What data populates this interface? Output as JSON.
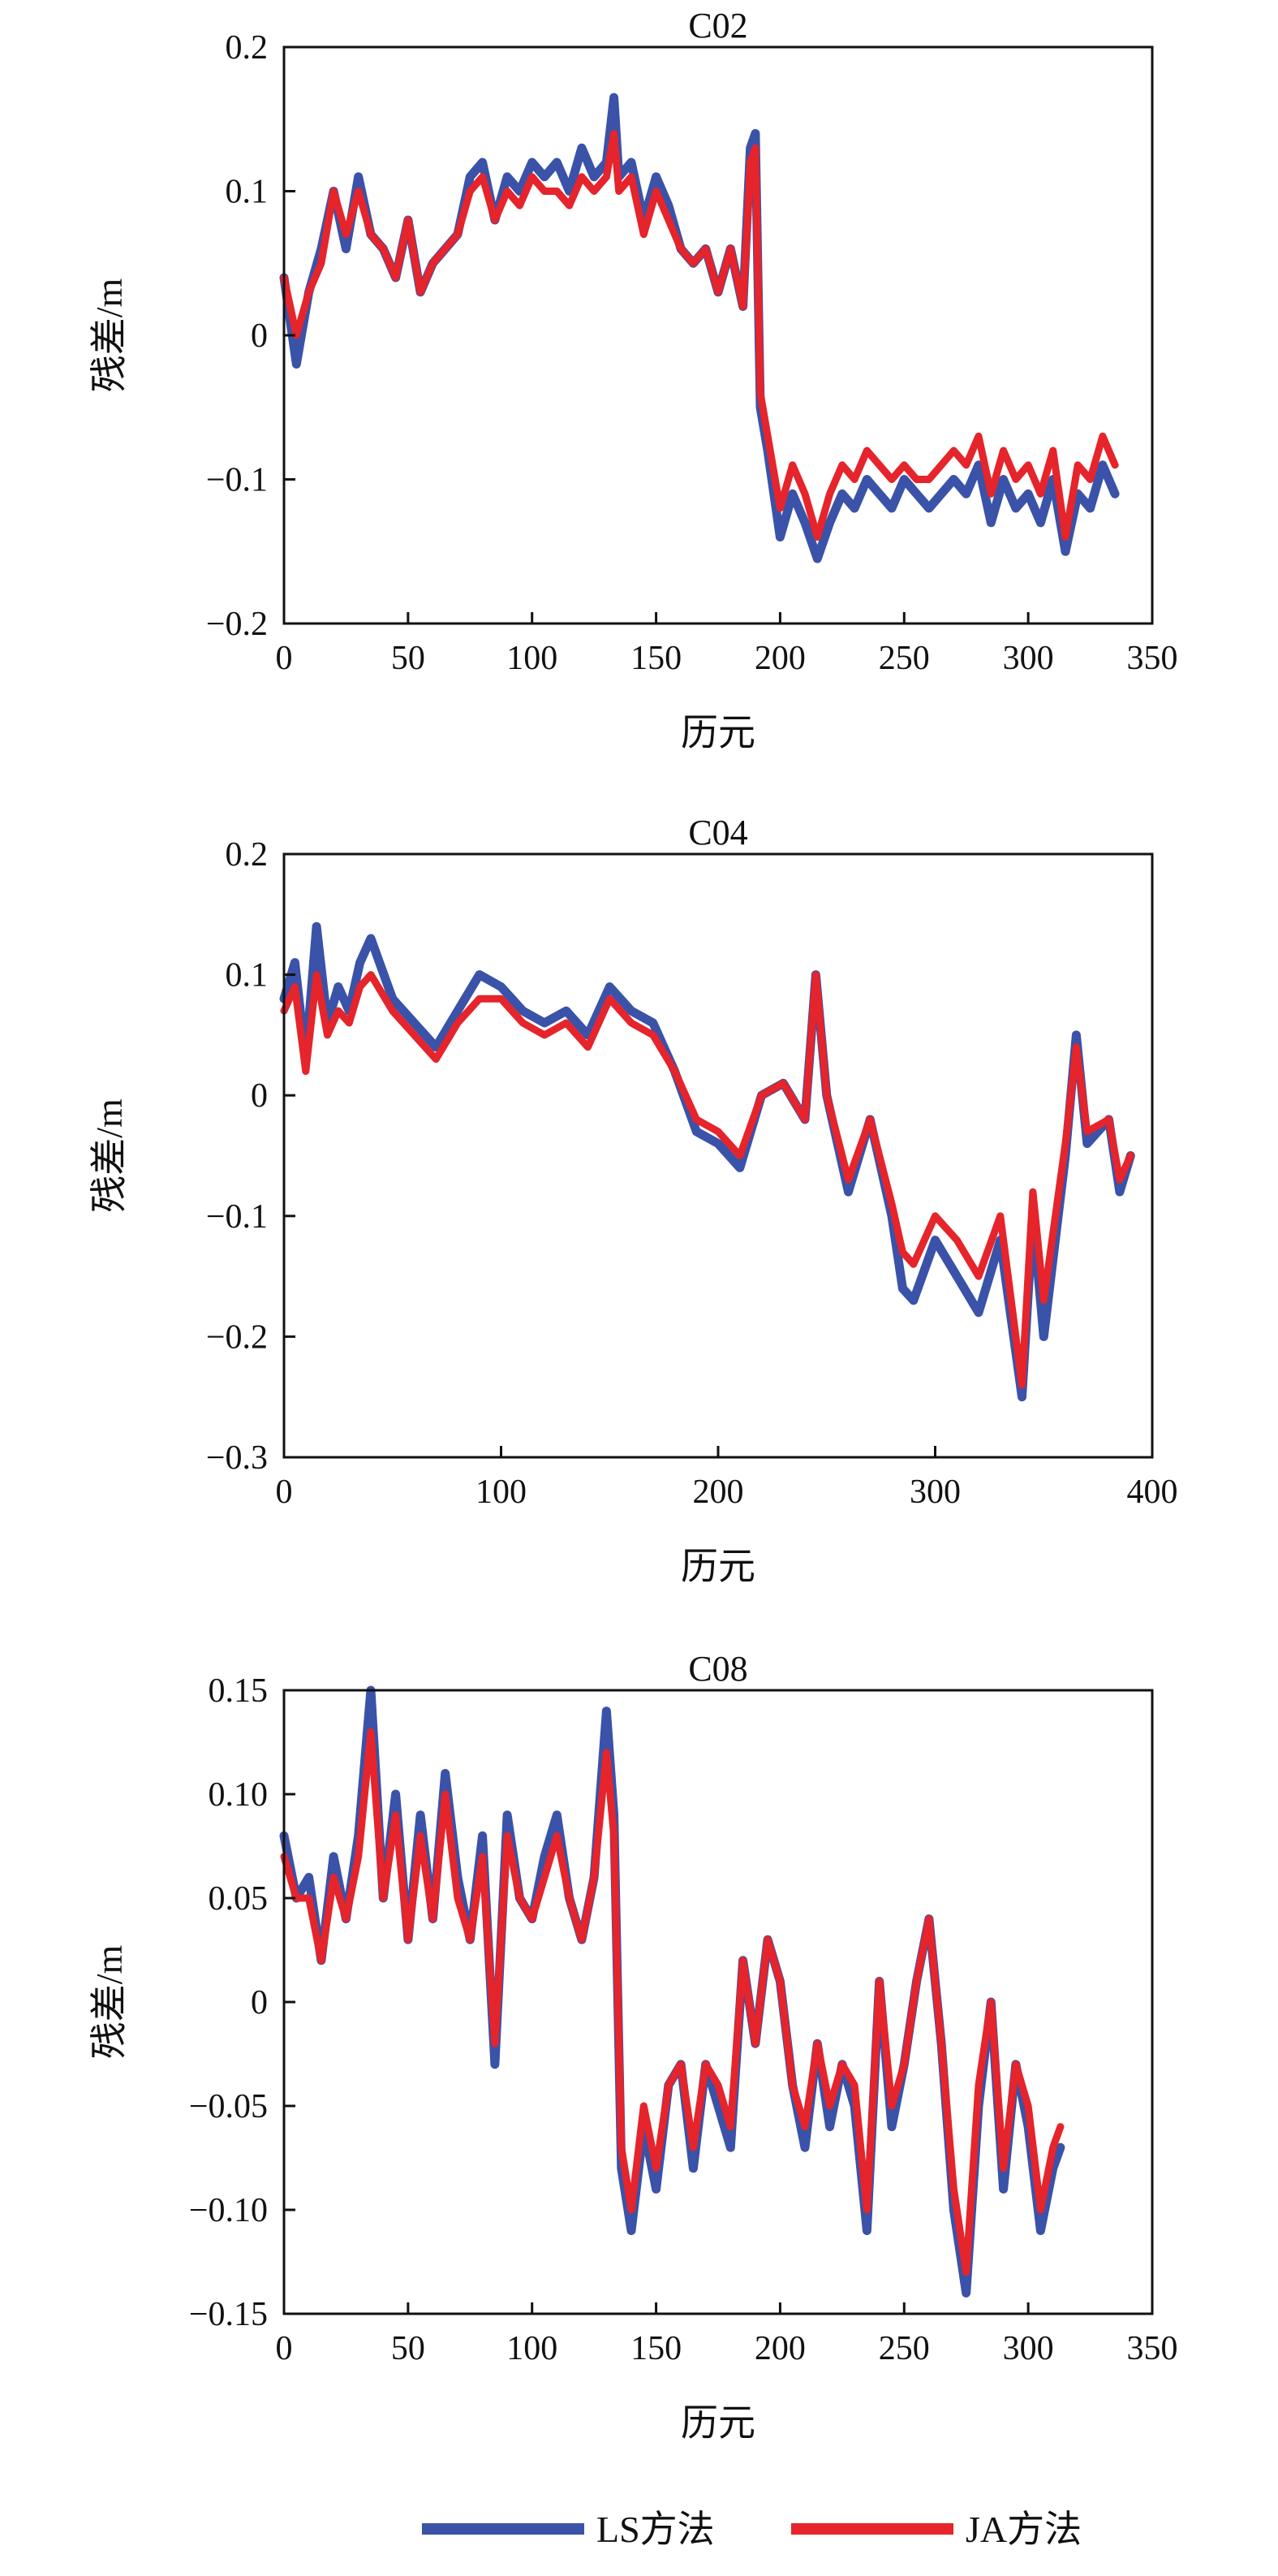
{
  "legend": [
    {
      "name": "LS方法",
      "color": "#3a52a8"
    },
    {
      "name": "JA方法",
      "color": "#e5242b"
    }
  ],
  "chart_data": [
    {
      "type": "line",
      "title": "C02",
      "xlabel": "历元",
      "ylabel": "残差/m",
      "xlim": [
        0,
        350
      ],
      "ylim": [
        -0.2,
        0.2
      ],
      "xticks": [
        0,
        50,
        100,
        150,
        200,
        250,
        300,
        350
      ],
      "xtick_labels": [
        "0",
        "50",
        "100",
        "150",
        "200",
        "250",
        "300",
        "350"
      ],
      "yticks": [
        -0.2,
        -0.1,
        0,
        0.1,
        0.2
      ],
      "ytick_labels": [
        "−0.2",
        "−0.1",
        "0",
        "0.1",
        "0.2"
      ],
      "grid": false,
      "legend_position": "bottom",
      "series": [
        {
          "name": "LS方法",
          "color": "#3a52a8",
          "x": [
            0,
            5,
            10,
            15,
            20,
            25,
            30,
            35,
            40,
            45,
            50,
            55,
            60,
            65,
            70,
            75,
            80,
            85,
            90,
            95,
            100,
            105,
            110,
            115,
            120,
            125,
            130,
            133,
            135,
            140,
            145,
            150,
            155,
            160,
            165,
            170,
            175,
            180,
            185,
            188,
            190,
            192,
            195,
            200,
            205,
            210,
            215,
            220,
            225,
            230,
            235,
            240,
            245,
            250,
            255,
            260,
            265,
            270,
            275,
            280,
            285,
            290,
            295,
            300,
            305,
            310,
            315,
            320,
            325,
            330,
            335
          ],
          "y": [
            0.04,
            -0.02,
            0.03,
            0.06,
            0.1,
            0.06,
            0.11,
            0.07,
            0.06,
            0.04,
            0.08,
            0.03,
            0.05,
            0.06,
            0.07,
            0.11,
            0.12,
            0.08,
            0.11,
            0.1,
            0.12,
            0.11,
            0.12,
            0.1,
            0.13,
            0.11,
            0.12,
            0.165,
            0.11,
            0.12,
            0.08,
            0.11,
            0.09,
            0.06,
            0.05,
            0.06,
            0.03,
            0.06,
            0.02,
            0.13,
            0.14,
            -0.05,
            -0.08,
            -0.14,
            -0.11,
            -0.13,
            -0.155,
            -0.13,
            -0.11,
            -0.12,
            -0.1,
            -0.11,
            -0.12,
            -0.1,
            -0.11,
            -0.12,
            -0.11,
            -0.1,
            -0.11,
            -0.09,
            -0.13,
            -0.1,
            -0.12,
            -0.11,
            -0.13,
            -0.1,
            -0.15,
            -0.11,
            -0.12,
            -0.09,
            -0.11
          ]
        },
        {
          "name": "JA方法",
          "color": "#e5242b",
          "x": [
            0,
            5,
            10,
            15,
            20,
            25,
            30,
            35,
            40,
            45,
            50,
            55,
            60,
            65,
            70,
            75,
            80,
            85,
            90,
            95,
            100,
            105,
            110,
            115,
            120,
            125,
            130,
            133,
            135,
            140,
            145,
            150,
            155,
            160,
            165,
            170,
            175,
            180,
            185,
            188,
            190,
            192,
            195,
            200,
            205,
            210,
            215,
            220,
            225,
            230,
            235,
            240,
            245,
            250,
            255,
            260,
            265,
            270,
            275,
            280,
            285,
            290,
            295,
            300,
            305,
            310,
            315,
            320,
            325,
            330,
            335
          ],
          "y": [
            0.04,
            0.0,
            0.03,
            0.05,
            0.1,
            0.07,
            0.1,
            0.07,
            0.06,
            0.04,
            0.08,
            0.03,
            0.05,
            0.06,
            0.07,
            0.1,
            0.11,
            0.08,
            0.1,
            0.09,
            0.11,
            0.1,
            0.1,
            0.09,
            0.11,
            0.1,
            0.11,
            0.14,
            0.1,
            0.11,
            0.07,
            0.1,
            0.08,
            0.06,
            0.05,
            0.06,
            0.03,
            0.06,
            0.02,
            0.12,
            0.13,
            -0.04,
            -0.07,
            -0.12,
            -0.09,
            -0.11,
            -0.14,
            -0.11,
            -0.09,
            -0.1,
            -0.08,
            -0.09,
            -0.1,
            -0.09,
            -0.1,
            -0.1,
            -0.09,
            -0.08,
            -0.09,
            -0.07,
            -0.11,
            -0.08,
            -0.1,
            -0.09,
            -0.11,
            -0.08,
            -0.14,
            -0.09,
            -0.1,
            -0.07,
            -0.09
          ]
        }
      ]
    },
    {
      "type": "line",
      "title": "C04",
      "xlabel": "历元",
      "ylabel": "残差/m",
      "xlim": [
        0,
        400
      ],
      "ylim": [
        -0.3,
        0.2
      ],
      "xticks": [
        0,
        100,
        200,
        300,
        400
      ],
      "xtick_labels": [
        "0",
        "100",
        "200",
        "300",
        "400"
      ],
      "yticks": [
        -0.3,
        -0.2,
        -0.1,
        0,
        0.1,
        0.2
      ],
      "ytick_labels": [
        "−0.3",
        "−0.2",
        "−0.1",
        "0",
        "0.1",
        "0.2"
      ],
      "grid": false,
      "legend_position": "bottom",
      "series": [
        {
          "name": "LS方法",
          "color": "#3a52a8",
          "x": [
            0,
            5,
            10,
            15,
            20,
            25,
            30,
            35,
            40,
            50,
            60,
            70,
            80,
            90,
            100,
            110,
            120,
            130,
            140,
            150,
            160,
            170,
            180,
            190,
            200,
            210,
            220,
            230,
            240,
            245,
            250,
            260,
            270,
            280,
            285,
            290,
            300,
            310,
            320,
            330,
            340,
            345,
            350,
            360,
            365,
            370,
            380,
            385,
            390
          ],
          "y": [
            0.08,
            0.11,
            0.03,
            0.14,
            0.06,
            0.09,
            0.07,
            0.11,
            0.13,
            0.08,
            0.06,
            0.04,
            0.07,
            0.1,
            0.09,
            0.07,
            0.06,
            0.07,
            0.05,
            0.09,
            0.07,
            0.06,
            0.02,
            -0.03,
            -0.04,
            -0.06,
            0.0,
            0.01,
            -0.02,
            0.1,
            0.0,
            -0.08,
            -0.02,
            -0.1,
            -0.16,
            -0.17,
            -0.12,
            -0.15,
            -0.18,
            -0.12,
            -0.25,
            -0.1,
            -0.2,
            -0.05,
            0.05,
            -0.04,
            -0.02,
            -0.08,
            -0.05
          ]
        },
        {
          "name": "JA方法",
          "color": "#e5242b",
          "x": [
            0,
            5,
            10,
            15,
            20,
            25,
            30,
            35,
            40,
            50,
            60,
            70,
            80,
            90,
            100,
            110,
            120,
            130,
            140,
            150,
            160,
            170,
            180,
            190,
            200,
            210,
            220,
            230,
            240,
            245,
            250,
            260,
            270,
            280,
            285,
            290,
            300,
            310,
            320,
            330,
            340,
            345,
            350,
            360,
            365,
            370,
            380,
            385,
            390
          ],
          "y": [
            0.07,
            0.09,
            0.02,
            0.1,
            0.05,
            0.07,
            0.06,
            0.09,
            0.1,
            0.07,
            0.05,
            0.03,
            0.06,
            0.08,
            0.08,
            0.06,
            0.05,
            0.06,
            0.04,
            0.08,
            0.06,
            0.05,
            0.02,
            -0.02,
            -0.03,
            -0.05,
            0.0,
            0.01,
            -0.02,
            0.1,
            0.0,
            -0.07,
            -0.02,
            -0.09,
            -0.13,
            -0.14,
            -0.1,
            -0.12,
            -0.15,
            -0.1,
            -0.24,
            -0.08,
            -0.17,
            -0.04,
            0.04,
            -0.03,
            -0.02,
            -0.07,
            -0.05
          ]
        }
      ]
    },
    {
      "type": "line",
      "title": "C08",
      "xlabel": "历元",
      "ylabel": "残差/m",
      "xlim": [
        0,
        350
      ],
      "ylim": [
        -0.15,
        0.15
      ],
      "xticks": [
        0,
        50,
        100,
        150,
        200,
        250,
        300,
        350
      ],
      "xtick_labels": [
        "0",
        "50",
        "100",
        "150",
        "200",
        "250",
        "300",
        "350"
      ],
      "yticks": [
        -0.15,
        -0.1,
        -0.05,
        0,
        0.05,
        0.1,
        0.15
      ],
      "ytick_labels": [
        "−0.15",
        "−0.10",
        "−0.05",
        "0",
        "0.05",
        "0.10",
        "0.15"
      ],
      "grid": false,
      "legend_position": "bottom",
      "series": [
        {
          "name": "LS方法",
          "color": "#3a52a8",
          "x": [
            0,
            5,
            10,
            15,
            20,
            25,
            30,
            35,
            40,
            45,
            50,
            55,
            60,
            65,
            70,
            75,
            80,
            85,
            90,
            95,
            100,
            105,
            110,
            115,
            120,
            125,
            130,
            133,
            136,
            140,
            145,
            150,
            155,
            160,
            165,
            170,
            175,
            180,
            185,
            190,
            195,
            200,
            205,
            210,
            215,
            220,
            225,
            230,
            235,
            240,
            245,
            250,
            255,
            260,
            265,
            270,
            275,
            280,
            285,
            290,
            295,
            300,
            305,
            310,
            313
          ],
          "y": [
            0.08,
            0.05,
            0.06,
            0.02,
            0.07,
            0.04,
            0.08,
            0.15,
            0.05,
            0.1,
            0.03,
            0.09,
            0.04,
            0.11,
            0.06,
            0.03,
            0.08,
            -0.03,
            0.09,
            0.05,
            0.04,
            0.07,
            0.09,
            0.05,
            0.03,
            0.06,
            0.14,
            0.09,
            -0.08,
            -0.11,
            -0.06,
            -0.09,
            -0.04,
            -0.03,
            -0.08,
            -0.03,
            -0.05,
            -0.07,
            0.02,
            -0.02,
            0.03,
            0.01,
            -0.04,
            -0.07,
            -0.02,
            -0.06,
            -0.03,
            -0.05,
            -0.11,
            0.01,
            -0.06,
            -0.03,
            0.01,
            0.04,
            -0.02,
            -0.1,
            -0.14,
            -0.05,
            0.0,
            -0.09,
            -0.03,
            -0.06,
            -0.11,
            -0.08,
            -0.07
          ]
        },
        {
          "name": "JA方法",
          "color": "#e5242b",
          "x": [
            0,
            5,
            10,
            15,
            20,
            25,
            30,
            35,
            40,
            45,
            50,
            55,
            60,
            65,
            70,
            75,
            80,
            85,
            90,
            95,
            100,
            105,
            110,
            115,
            120,
            125,
            130,
            133,
            136,
            140,
            145,
            150,
            155,
            160,
            165,
            170,
            175,
            180,
            185,
            190,
            195,
            200,
            205,
            210,
            215,
            220,
            225,
            230,
            235,
            240,
            245,
            250,
            255,
            260,
            265,
            270,
            275,
            280,
            285,
            290,
            295,
            300,
            305,
            310,
            313
          ],
          "y": [
            0.07,
            0.05,
            0.05,
            0.02,
            0.06,
            0.04,
            0.07,
            0.13,
            0.05,
            0.09,
            0.03,
            0.08,
            0.04,
            0.1,
            0.05,
            0.03,
            0.07,
            -0.02,
            0.08,
            0.05,
            0.04,
            0.06,
            0.08,
            0.05,
            0.03,
            0.06,
            0.12,
            0.08,
            -0.07,
            -0.1,
            -0.05,
            -0.08,
            -0.04,
            -0.03,
            -0.07,
            -0.03,
            -0.04,
            -0.06,
            0.02,
            -0.02,
            0.03,
            0.01,
            -0.04,
            -0.06,
            -0.02,
            -0.05,
            -0.03,
            -0.04,
            -0.1,
            0.01,
            -0.05,
            -0.03,
            0.01,
            0.04,
            -0.02,
            -0.09,
            -0.13,
            -0.04,
            0.0,
            -0.08,
            -0.03,
            -0.05,
            -0.1,
            -0.07,
            -0.06
          ]
        }
      ]
    }
  ]
}
